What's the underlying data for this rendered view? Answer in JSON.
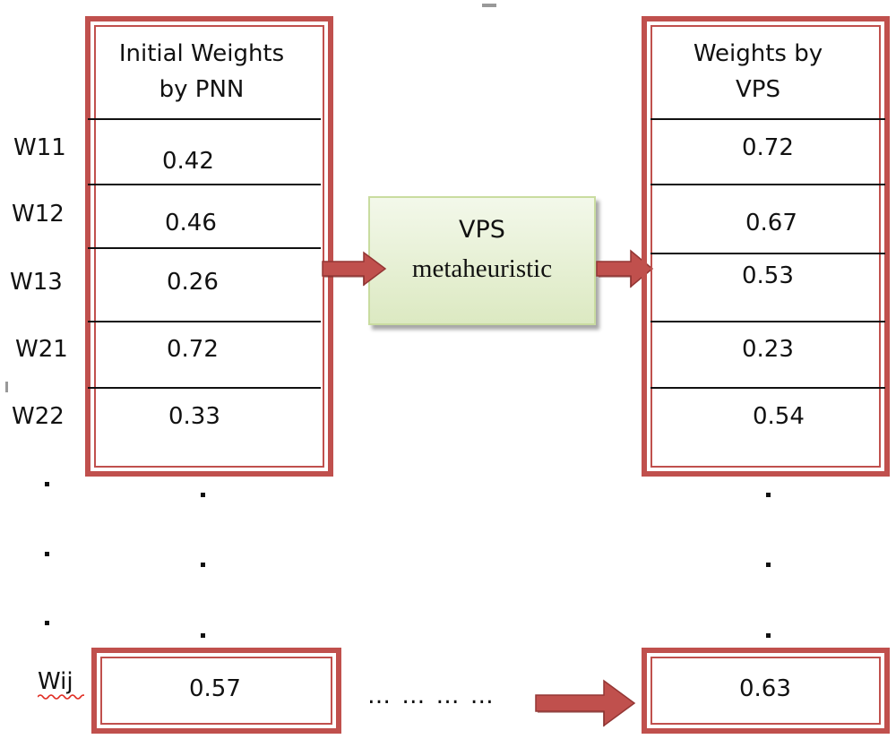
{
  "left_table": {
    "header_line1": "Initial Weights",
    "header_line2": "by PNN",
    "values": [
      "0.42",
      "0.46",
      "0.26",
      "0.72",
      "0.33"
    ],
    "last_value": "0.57"
  },
  "right_table": {
    "header_line1": "Weights by",
    "header_line2": "VPS",
    "values": [
      "0.72",
      "0.67",
      "0.53",
      "0.23",
      "0.54"
    ],
    "last_value": "0.63"
  },
  "row_labels": [
    "W11",
    "W12",
    "W13",
    "W21",
    "W22"
  ],
  "last_row_label": "Wij",
  "ellipsis_dots": [
    ".",
    ".",
    "."
  ],
  "process_box": {
    "line1": "VPS",
    "line2": "metaheuristic"
  },
  "bottom_ellipsis": "… … … …",
  "colors": {
    "frame": "#c0504d",
    "arrow": "#c0504d",
    "process_fill": "#dce9c2"
  }
}
